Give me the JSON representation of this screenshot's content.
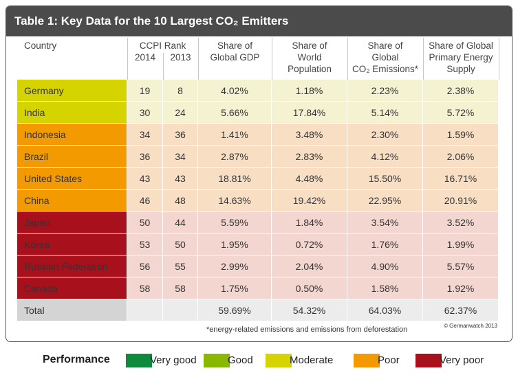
{
  "title": "Table 1: Key Data for the 10 Largest CO₂ Emitters",
  "table": {
    "header": {
      "country": "Country",
      "ccpi_rank": "CCPI Rank",
      "year_2014": "2014",
      "year_2013": "2013",
      "gdp": [
        "Share of",
        "Global GDP"
      ],
      "population": [
        "Share of",
        "World",
        "Population"
      ],
      "emissions": [
        "Share of",
        "Global",
        "CO₂ Emissions*"
      ],
      "energy": [
        "Share of Global",
        "Primary Energy",
        "Supply"
      ]
    },
    "rows": [
      {
        "country": "Germany",
        "rank_2014": "19",
        "rank_2013": "8",
        "gdp": "4.02%",
        "population": "1.18%",
        "emissions": "2.23%",
        "energy": "2.38%",
        "performance": 2
      },
      {
        "country": "India",
        "rank_2014": "30",
        "rank_2013": "24",
        "gdp": "5.66%",
        "population": "17.84%",
        "emissions": "5.14%",
        "energy": "5.72%",
        "performance": 2
      },
      {
        "country": "Indonesia",
        "rank_2014": "34",
        "rank_2013": "36",
        "gdp": "1.41%",
        "population": "3.48%",
        "emissions": "2.30%",
        "energy": "1.59%",
        "performance": 3
      },
      {
        "country": "Brazil",
        "rank_2014": "36",
        "rank_2013": "34",
        "gdp": "2.87%",
        "population": "2.83%",
        "emissions": "4.12%",
        "energy": "2.06%",
        "performance": 3
      },
      {
        "country": "United States",
        "rank_2014": "43",
        "rank_2013": "43",
        "gdp": "18.81%",
        "population": "4.48%",
        "emissions": "15.50%",
        "energy": "16.71%",
        "performance": 3
      },
      {
        "country": "China",
        "rank_2014": "46",
        "rank_2013": "48",
        "gdp": "14.63%",
        "population": "19.42%",
        "emissions": "22.95%",
        "energy": "20.91%",
        "performance": 3
      },
      {
        "country": "Japan",
        "rank_2014": "50",
        "rank_2013": "44",
        "gdp": "5.59%",
        "population": "1.84%",
        "emissions": "3.54%",
        "energy": "3.52%",
        "performance": 4
      },
      {
        "country": "Korea",
        "rank_2014": "53",
        "rank_2013": "50",
        "gdp": "1.95%",
        "population": "0.72%",
        "emissions": "1.76%",
        "energy": "1.99%",
        "performance": 4
      },
      {
        "country": "Russian Federation",
        "rank_2014": "56",
        "rank_2013": "55",
        "gdp": "2.99%",
        "population": "2.04%",
        "emissions": "4.90%",
        "energy": "5.57%",
        "performance": 4
      },
      {
        "country": "Canada",
        "rank_2014": "58",
        "rank_2013": "58",
        "gdp": "1.75%",
        "population": "0.50%",
        "emissions": "1.58%",
        "energy": "1.92%",
        "performance": 4
      }
    ],
    "total": {
      "country": "Total",
      "gdp": "59.69%",
      "population": "54.32%",
      "emissions": "64.03%",
      "energy": "62.37%"
    }
  },
  "footnote": "*energy-related emissions and emissions from deforestation",
  "copyright": "© Germanwatch 2013",
  "legend": {
    "title": "Performance",
    "items": [
      {
        "label": "Very good",
        "color": "#0d8a3c",
        "row_color": "#d9ecd9"
      },
      {
        "label": "Good",
        "color": "#8ab800",
        "row_color": "#ebf2d2"
      },
      {
        "label": "Moderate",
        "color": "#d6d400",
        "row_color": "#f5f2d2"
      },
      {
        "label": "Poor",
        "color": "#f29a00",
        "row_color": "#f8dfc4"
      },
      {
        "label": "Very poor",
        "color": "#a8111c",
        "row_color": "#f4d6d0"
      }
    ]
  }
}
